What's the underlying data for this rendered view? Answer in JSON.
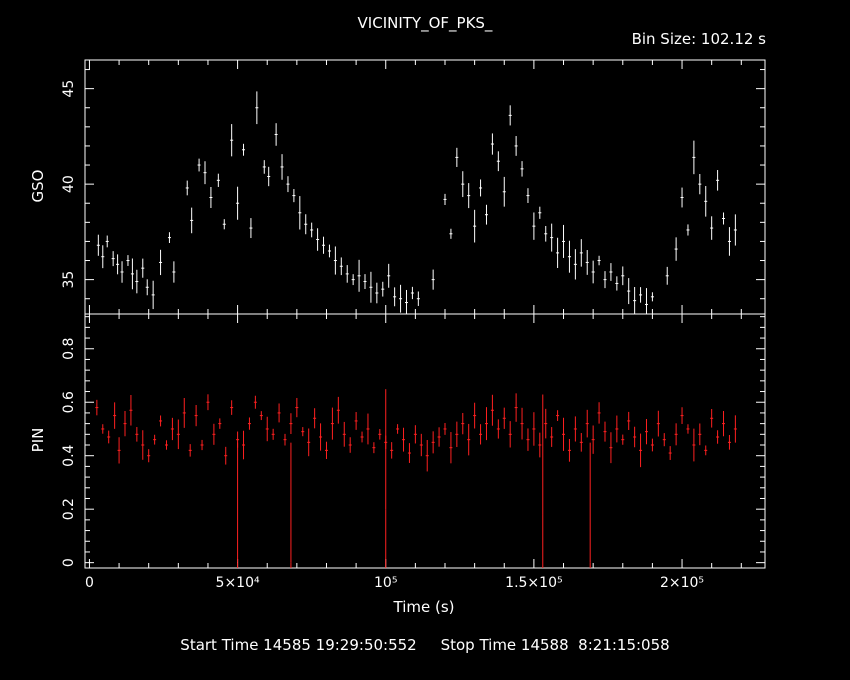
{
  "header": {
    "title": "VICINITY_OF_PKS_",
    "bin_size": "Bin Size: 102.12 s"
  },
  "footer": {
    "start_label": "Start Time 14585 19:29:50:552",
    "stop_label": "Stop Time 14588  8:21:15:058"
  },
  "colors": {
    "gso": "#ffffff",
    "pin": "#ff2020",
    "axes": "#ffffff",
    "background": "#000000"
  },
  "chart_data": {
    "type": "scatter",
    "xlabel": "Time (s)",
    "xlim": [
      -1500,
      228000
    ],
    "x_ticks": [
      {
        "value": 0,
        "label": "0"
      },
      {
        "value": 50000,
        "label": "5×10⁴"
      },
      {
        "value": 100000,
        "label": "10⁵"
      },
      {
        "value": 150000,
        "label": "1.5×10⁵"
      },
      {
        "value": 200000,
        "label": "2×10⁵"
      }
    ],
    "panels": [
      {
        "name": "GSO",
        "ylabel": "GSO",
        "ylim": [
          33.2,
          46.5
        ],
        "y_ticks": [
          35,
          40,
          45
        ],
        "color": "#ffffff",
        "points": [
          [
            3000,
            36.8
          ],
          [
            4500,
            36.2
          ],
          [
            6000,
            37.0
          ],
          [
            8000,
            36.1
          ],
          [
            9500,
            35.8
          ],
          [
            11000,
            35.4
          ],
          [
            13000,
            36.0
          ],
          [
            14500,
            35.3
          ],
          [
            16000,
            34.9
          ],
          [
            18000,
            35.6
          ],
          [
            19500,
            34.6
          ],
          [
            21500,
            34.2
          ],
          [
            24000,
            35.9
          ],
          [
            27000,
            37.2
          ],
          [
            28500,
            35.4
          ],
          [
            33000,
            39.8
          ],
          [
            34500,
            38.1
          ],
          [
            37000,
            41.0
          ],
          [
            39000,
            40.6
          ],
          [
            41000,
            39.3
          ],
          [
            43500,
            40.2
          ],
          [
            45500,
            37.9
          ],
          [
            48000,
            42.3
          ],
          [
            50000,
            39.0
          ],
          [
            52000,
            41.8
          ],
          [
            54500,
            37.7
          ],
          [
            56500,
            44.0
          ],
          [
            59000,
            40.9
          ],
          [
            60500,
            40.4
          ],
          [
            63000,
            42.6
          ],
          [
            65000,
            40.9
          ],
          [
            67000,
            40.0
          ],
          [
            69000,
            39.4
          ],
          [
            71000,
            38.5
          ],
          [
            73000,
            37.9
          ],
          [
            75000,
            37.6
          ],
          [
            77000,
            37.1
          ],
          [
            79000,
            36.8
          ],
          [
            81000,
            36.5
          ],
          [
            83000,
            36.0
          ],
          [
            85000,
            35.7
          ],
          [
            87000,
            35.3
          ],
          [
            89000,
            35.0
          ],
          [
            91000,
            35.2
          ],
          [
            93000,
            34.9
          ],
          [
            95000,
            34.6
          ],
          [
            97000,
            34.3
          ],
          [
            99000,
            34.5
          ],
          [
            101000,
            35.2
          ],
          [
            103000,
            34.1
          ],
          [
            105000,
            34.0
          ],
          [
            107000,
            33.8
          ],
          [
            109000,
            34.3
          ],
          [
            111000,
            34.0
          ],
          [
            116000,
            35.0
          ],
          [
            120000,
            39.2
          ],
          [
            122000,
            37.4
          ],
          [
            124000,
            41.4
          ],
          [
            126000,
            40.0
          ],
          [
            128000,
            39.4
          ],
          [
            130000,
            37.8
          ],
          [
            132000,
            39.8
          ],
          [
            134000,
            38.4
          ],
          [
            136000,
            42.1
          ],
          [
            138000,
            41.2
          ],
          [
            140000,
            39.6
          ],
          [
            142000,
            43.6
          ],
          [
            144000,
            42.0
          ],
          [
            146000,
            40.8
          ],
          [
            148000,
            39.4
          ],
          [
            150000,
            37.8
          ],
          [
            152000,
            38.5
          ],
          [
            154000,
            37.4
          ],
          [
            156000,
            37.2
          ],
          [
            158000,
            36.4
          ],
          [
            160000,
            37.0
          ],
          [
            162000,
            36.2
          ],
          [
            164000,
            35.8
          ],
          [
            166000,
            36.4
          ],
          [
            168000,
            35.9
          ],
          [
            170000,
            35.4
          ],
          [
            172000,
            36.0
          ],
          [
            174000,
            35.0
          ],
          [
            176000,
            35.4
          ],
          [
            178000,
            34.8
          ],
          [
            180000,
            35.2
          ],
          [
            182000,
            34.4
          ],
          [
            184000,
            33.9
          ],
          [
            186000,
            34.2
          ],
          [
            188000,
            33.7
          ],
          [
            190000,
            34.1
          ],
          [
            195000,
            35.2
          ],
          [
            198000,
            36.6
          ],
          [
            200000,
            39.3
          ],
          [
            202000,
            37.6
          ],
          [
            204000,
            41.4
          ],
          [
            206000,
            40.0
          ],
          [
            208000,
            39.1
          ],
          [
            210000,
            37.7
          ],
          [
            212000,
            40.2
          ],
          [
            214000,
            38.2
          ],
          [
            216000,
            37.0
          ],
          [
            218000,
            37.6
          ]
        ]
      },
      {
        "name": "PIN",
        "ylabel": "PIN",
        "ylim": [
          -0.02,
          0.93
        ],
        "y_ticks": [
          0,
          0.2,
          0.4,
          0.6,
          0.8
        ],
        "color": "#ff2020",
        "points": [
          [
            2500,
            0.58
          ],
          [
            4500,
            0.5
          ],
          [
            6500,
            0.47
          ],
          [
            8500,
            0.55
          ],
          [
            10000,
            0.42
          ],
          [
            12000,
            0.52
          ],
          [
            14000,
            0.57
          ],
          [
            16000,
            0.48
          ],
          [
            18000,
            0.44
          ],
          [
            20000,
            0.4
          ],
          [
            22000,
            0.46
          ],
          [
            24000,
            0.53
          ],
          [
            26000,
            0.44
          ],
          [
            28000,
            0.5
          ],
          [
            30000,
            0.48
          ],
          [
            32000,
            0.56
          ],
          [
            34000,
            0.42
          ],
          [
            36000,
            0.55
          ],
          [
            38000,
            0.44
          ],
          [
            40000,
            0.6
          ],
          [
            42000,
            0.48
          ],
          [
            44000,
            0.52
          ],
          [
            46000,
            0.4
          ],
          [
            48000,
            0.58
          ],
          [
            50000,
            0.46
          ],
          [
            52000,
            0.44
          ],
          [
            54000,
            0.52
          ],
          [
            56000,
            0.6
          ],
          [
            58000,
            0.55
          ],
          [
            60000,
            0.5
          ],
          [
            62000,
            0.48
          ],
          [
            64000,
            0.56
          ],
          [
            66000,
            0.46
          ],
          [
            68000,
            0.52
          ],
          [
            70000,
            0.58
          ],
          [
            72000,
            0.49
          ],
          [
            74000,
            0.45
          ],
          [
            76000,
            0.54
          ],
          [
            78000,
            0.47
          ],
          [
            80000,
            0.42
          ],
          [
            82000,
            0.52
          ],
          [
            84000,
            0.57
          ],
          [
            86000,
            0.48
          ],
          [
            88000,
            0.44
          ],
          [
            90000,
            0.53
          ],
          [
            92000,
            0.47
          ],
          [
            94000,
            0.5
          ],
          [
            96000,
            0.43
          ],
          [
            98000,
            0.48
          ],
          [
            100000,
            0.45
          ],
          [
            102000,
            0.42
          ],
          [
            104000,
            0.5
          ],
          [
            106000,
            0.46
          ],
          [
            108000,
            0.41
          ],
          [
            110000,
            0.48
          ],
          [
            112000,
            0.44
          ],
          [
            114000,
            0.4
          ],
          [
            116000,
            0.45
          ],
          [
            118000,
            0.47
          ],
          [
            120000,
            0.5
          ],
          [
            122000,
            0.43
          ],
          [
            124000,
            0.48
          ],
          [
            126000,
            0.52
          ],
          [
            128000,
            0.46
          ],
          [
            130000,
            0.55
          ],
          [
            132000,
            0.48
          ],
          [
            134000,
            0.52
          ],
          [
            136000,
            0.57
          ],
          [
            138000,
            0.5
          ],
          [
            140000,
            0.54
          ],
          [
            142000,
            0.48
          ],
          [
            144000,
            0.58
          ],
          [
            146000,
            0.52
          ],
          [
            148000,
            0.46
          ],
          [
            150000,
            0.5
          ],
          [
            152000,
            0.44
          ],
          [
            154000,
            0.52
          ],
          [
            156000,
            0.47
          ],
          [
            158000,
            0.55
          ],
          [
            160000,
            0.48
          ],
          [
            162000,
            0.42
          ],
          [
            164000,
            0.5
          ],
          [
            166000,
            0.45
          ],
          [
            168000,
            0.52
          ],
          [
            170000,
            0.46
          ],
          [
            172000,
            0.56
          ],
          [
            174000,
            0.49
          ],
          [
            176000,
            0.43
          ],
          [
            178000,
            0.5
          ],
          [
            180000,
            0.46
          ],
          [
            182000,
            0.53
          ],
          [
            184000,
            0.47
          ],
          [
            186000,
            0.42
          ],
          [
            188000,
            0.49
          ],
          [
            190000,
            0.44
          ],
          [
            192000,
            0.52
          ],
          [
            194000,
            0.46
          ],
          [
            196000,
            0.41
          ],
          [
            198000,
            0.48
          ],
          [
            200000,
            0.55
          ],
          [
            202000,
            0.5
          ],
          [
            204000,
            0.44
          ],
          [
            206000,
            0.48
          ],
          [
            208000,
            0.42
          ],
          [
            210000,
            0.54
          ],
          [
            212000,
            0.47
          ],
          [
            214000,
            0.52
          ],
          [
            216000,
            0.45
          ],
          [
            218000,
            0.5
          ]
        ],
        "outliers": [
          [
            50000,
            0.0
          ],
          [
            68000,
            0.0
          ],
          [
            100000,
            0.2
          ],
          [
            153000,
            0.18
          ],
          [
            169000,
            0.0
          ]
        ]
      }
    ]
  }
}
